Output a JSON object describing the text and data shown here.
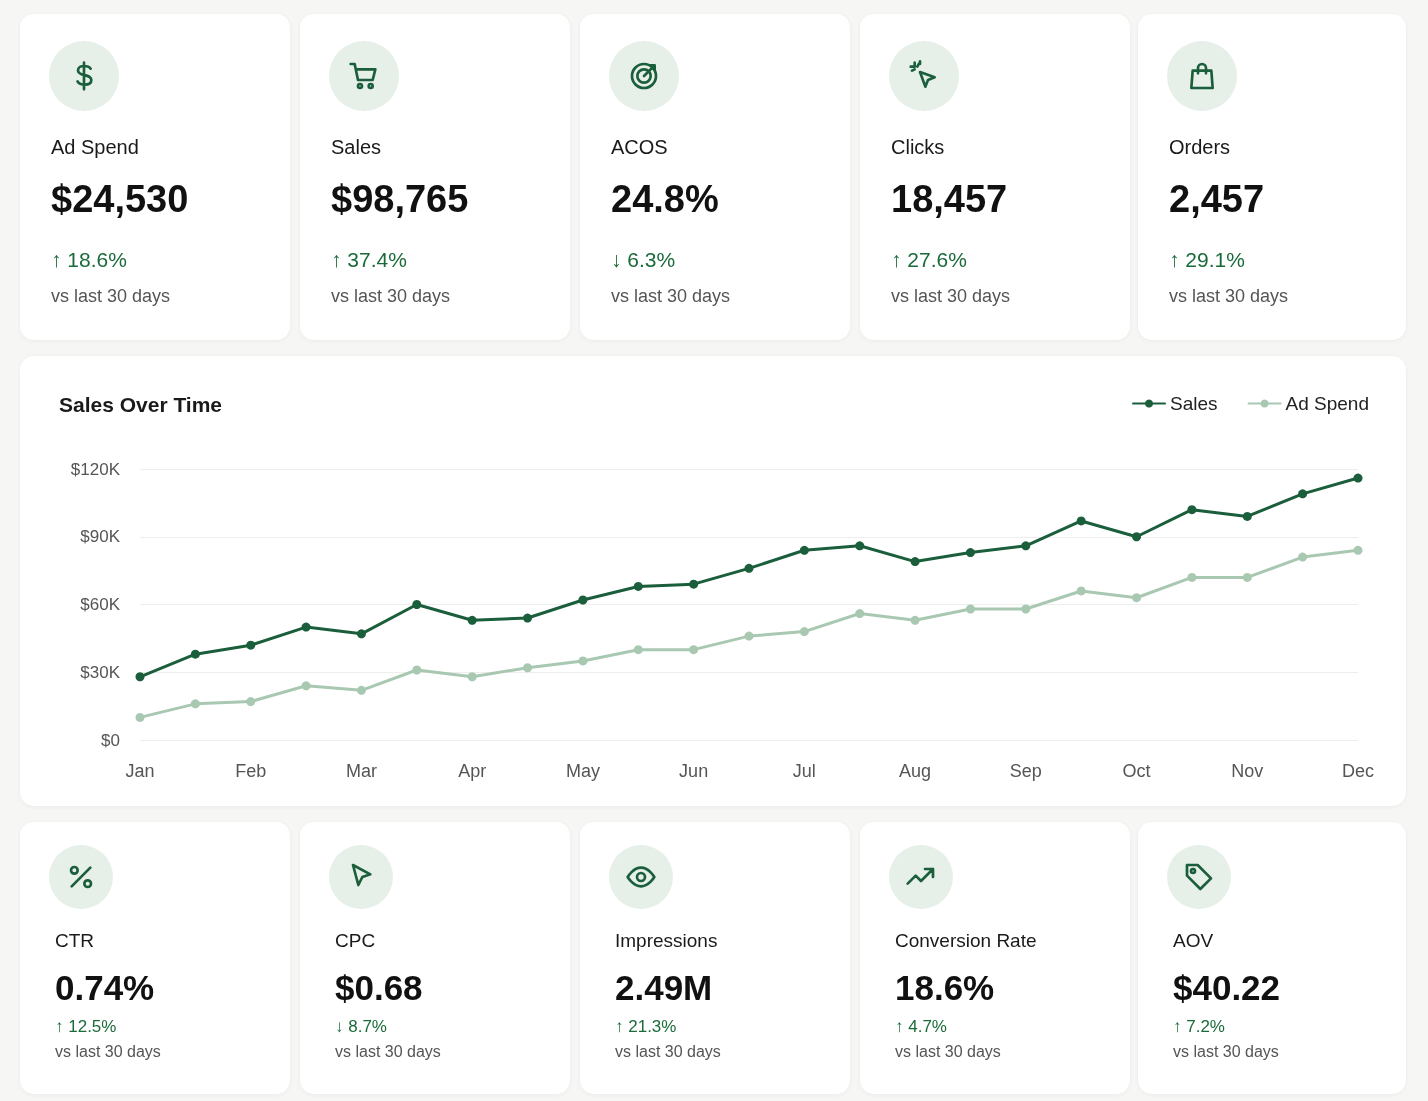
{
  "chart_data": [
    {
      "type": "other",
      "title": "Ad Spend",
      "annotations": [
        "$24,530",
        "↑ 18.6%",
        "vs last 30 days"
      ]
    },
    {
      "type": "other",
      "title": "Sales",
      "annotations": [
        "$98,765",
        "↑ 37.4%",
        "vs last 30 days"
      ]
    },
    {
      "type": "other",
      "title": "ACOS",
      "annotations": [
        "24.8%",
        "↓ 6.3%",
        "vs last 30 days"
      ]
    },
    {
      "type": "other",
      "title": "Clicks",
      "annotations": [
        "18,457",
        "↑ 27.6%",
        "vs last 30 days"
      ]
    },
    {
      "type": "other",
      "title": "Orders",
      "annotations": [
        "2,457",
        "↑ 29.1%",
        "vs last 30 days"
      ]
    },
    {
      "type": "line",
      "title": "Sales Over Time",
      "categories": [
        "Jan",
        null,
        "Feb",
        null,
        "Mar",
        null,
        "Apr",
        null,
        "May",
        null,
        "Jun",
        null,
        "Jul",
        null,
        "Aug",
        null,
        "Sep",
        null,
        "Oct",
        null,
        "Nov",
        null,
        "Dec"
      ],
      "series": [
        {
          "name": "Sales",
          "color": "#1b5e3b",
          "values": [
            28000,
            38000,
            42000,
            50000,
            47000,
            60000,
            53000,
            54000,
            62000,
            68000,
            69000,
            76000,
            84000,
            86000,
            79000,
            83000,
            86000,
            97000,
            90000,
            102000,
            99000,
            109000,
            116000
          ]
        },
        {
          "name": "Ad Spend",
          "color": "#a9c8b2",
          "values": [
            10000,
            16000,
            17000,
            24000,
            22000,
            31000,
            28000,
            32000,
            35000,
            40000,
            40000,
            46000,
            48000,
            56000,
            53000,
            58000,
            58000,
            66000,
            63000,
            72000,
            72000,
            81000,
            84000
          ]
        }
      ],
      "ylim": [
        0,
        120000
      ],
      "yticks": [
        {
          "value": 0,
          "label": "$0"
        },
        {
          "value": 30000,
          "label": "$30K"
        },
        {
          "value": 60000,
          "label": "$60K"
        },
        {
          "value": 90000,
          "label": "$90K"
        },
        {
          "value": 120000,
          "label": "$120K"
        }
      ],
      "grid": "y",
      "legend": "top right",
      "marker": "circle",
      "line_style": "solid"
    },
    {
      "type": "other",
      "title": "CTR",
      "annotations": [
        "0.74%",
        "↑ 12.5%",
        "vs last 30 days"
      ]
    },
    {
      "type": "other",
      "title": "CPC",
      "annotations": [
        "$0.68",
        "↓ 8.7%",
        "vs last 30 days"
      ]
    },
    {
      "type": "other",
      "title": "Impressions",
      "annotations": [
        "2.49M",
        "↑ 21.3%",
        "vs last 30 days"
      ]
    },
    {
      "type": "other",
      "title": "Conversion Rate",
      "annotations": [
        "18.6%",
        "↑ 4.7%",
        "vs last 30 days"
      ]
    },
    {
      "type": "other",
      "title": "AOV",
      "annotations": [
        "$40.22",
        "↑ 7.2%",
        "vs last 30 days"
      ]
    }
  ]
}
